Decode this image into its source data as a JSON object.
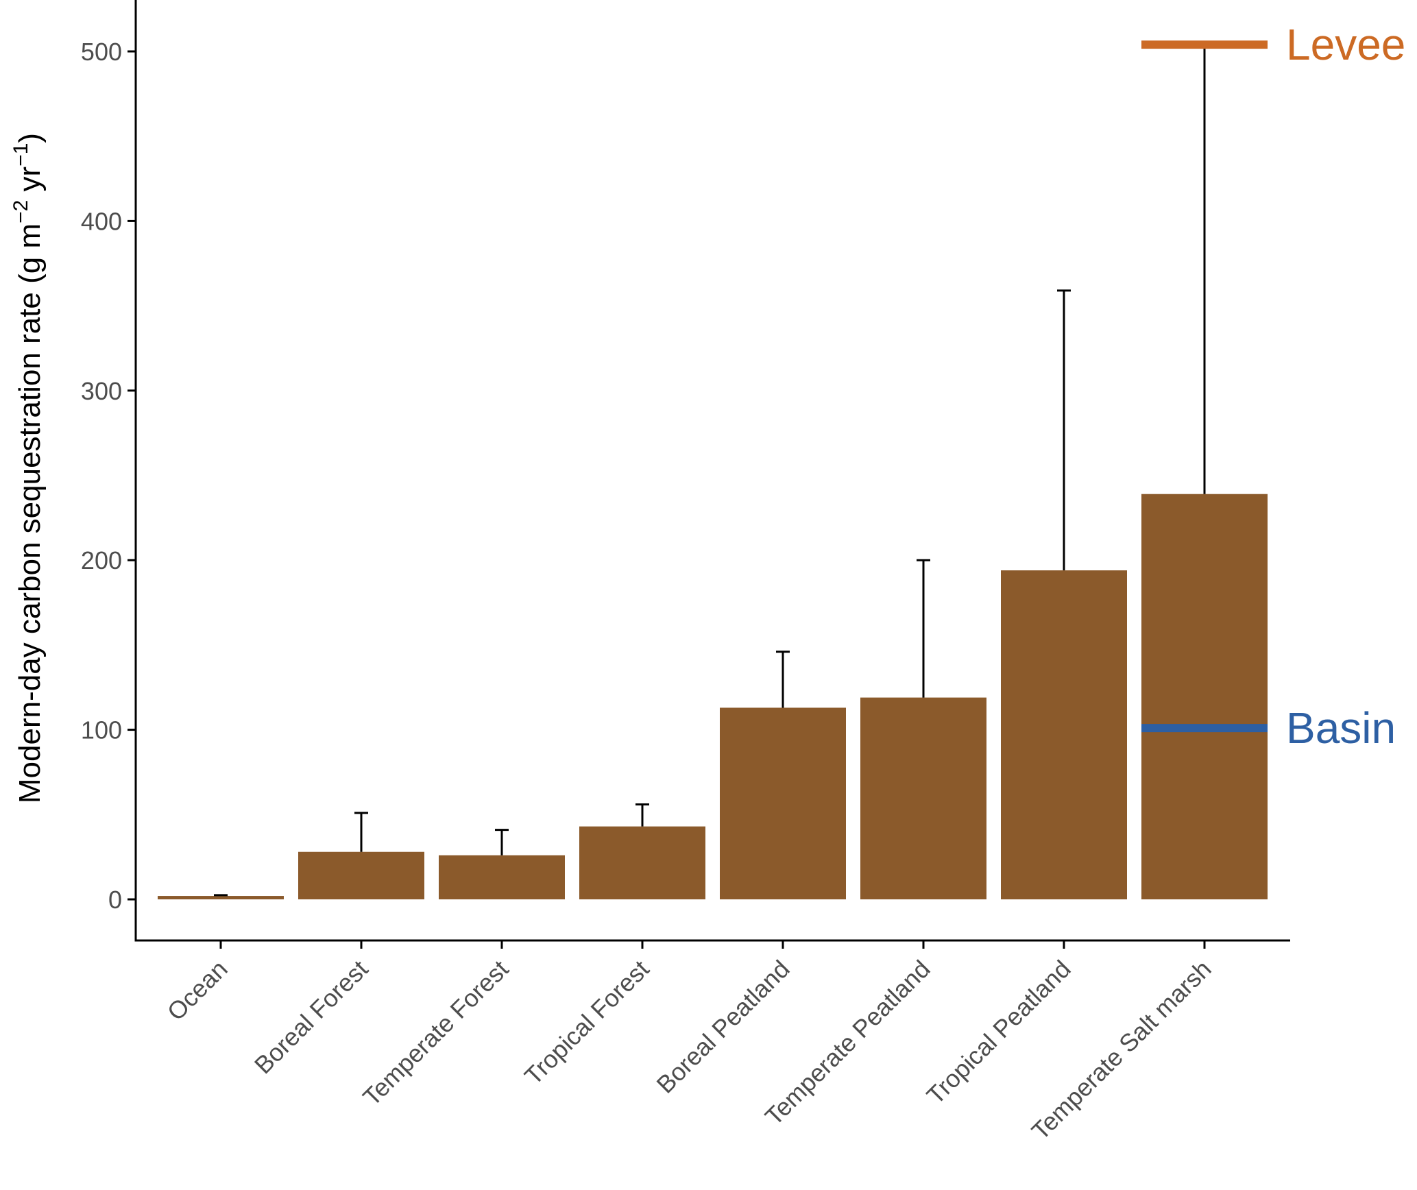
{
  "chart_data": {
    "type": "bar",
    "categories": [
      "Ocean",
      "Boreal Forest",
      "Temperate Forest",
      "Tropical Forest",
      "Boreal Peatland",
      "Temperate Peatland",
      "Tropical Peatland",
      "Temperate Salt marsh"
    ],
    "values": [
      2,
      28,
      26,
      43,
      113,
      119,
      194,
      239
    ],
    "error_upper": [
      2.5,
      51,
      41,
      56,
      146,
      200,
      359,
      504
    ],
    "ylabel": {
      "prefix": "Modern-day carbon sequestration rate  (g m",
      "sup1": "−2",
      "mid": " yr",
      "sup2": "−1",
      "suffix": ")"
    },
    "ylim": [
      -25,
      530
    ],
    "yticks": [
      0,
      100,
      200,
      300,
      400,
      500
    ],
    "bar_color": "#8b5a2b",
    "reference_lines": [
      {
        "label": "Levee",
        "value": 504,
        "color": "#cc6a24"
      },
      {
        "label": "Basin",
        "value": 101,
        "color": "#2d5fa3"
      }
    ],
    "grid": false,
    "legend": "none"
  }
}
